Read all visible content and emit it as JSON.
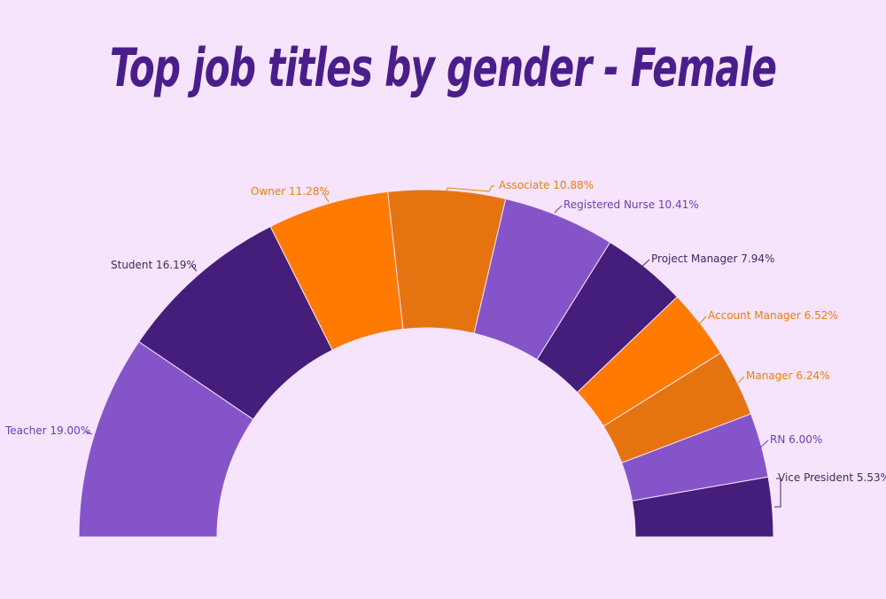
{
  "chart_data": {
    "type": "pie",
    "variant": "semi-donut",
    "title": "Top job titles by gender - Female",
    "slices": [
      {
        "label": "Teacher",
        "percent": "19.00%",
        "value": 19.0,
        "color": "#8654c9",
        "label_color": "#6a3fb0"
      },
      {
        "label": "Student",
        "percent": "16.19%",
        "value": 16.19,
        "color": "#451d7b",
        "label_color": "#3d2c5c"
      },
      {
        "label": "Owner",
        "percent": "11.28%",
        "value": 11.28,
        "color": "#ff7a00",
        "label_color": "#e8820c"
      },
      {
        "label": "Associate",
        "percent": "10.88%",
        "value": 10.88,
        "color": "#e57410",
        "label_color": "#e8820c"
      },
      {
        "label": "Registered Nurse",
        "percent": "10.41%",
        "value": 10.41,
        "color": "#8654c9",
        "label_color": "#6a3fb0"
      },
      {
        "label": "Project Manager",
        "percent": "7.94%",
        "value": 7.94,
        "color": "#451d7b",
        "label_color": "#3d2c5c"
      },
      {
        "label": "Account Manager",
        "percent": "6.52%",
        "value": 6.52,
        "color": "#ff7a00",
        "label_color": "#e8820c"
      },
      {
        "label": "Manager",
        "percent": "6.24%",
        "value": 6.24,
        "color": "#e57410",
        "label_color": "#e8820c"
      },
      {
        "label": "RN",
        "percent": "6.00%",
        "value": 6.0,
        "color": "#8654c9",
        "label_color": "#6a3fb0"
      },
      {
        "label": "Vice President",
        "percent": "5.53%",
        "value": 5.53,
        "color": "#451d7b",
        "label_color": "#3d2c5c"
      }
    ],
    "colors": {
      "background": "#f6e3fc",
      "title": "#4a1e8a"
    }
  }
}
